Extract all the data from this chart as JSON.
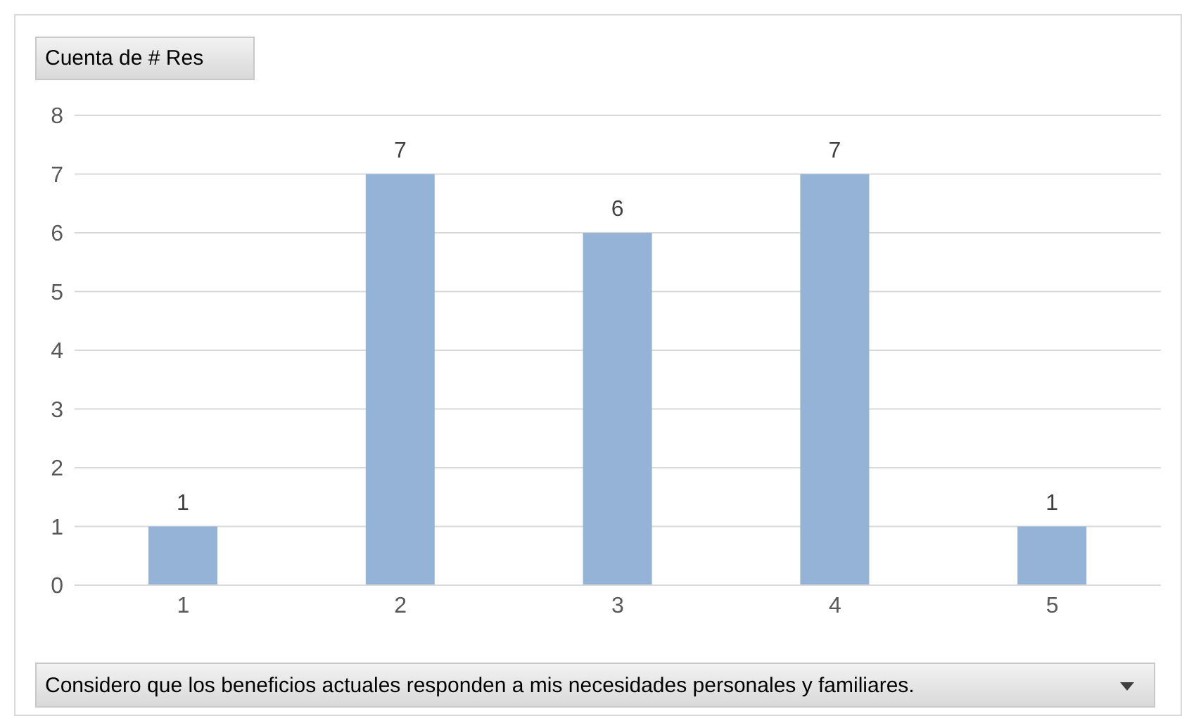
{
  "chart_data": {
    "type": "bar",
    "ylabel": "Cuenta de # Res",
    "xlabel": "Considero que los beneficios actuales responden a mis necesidades personales y familiares.",
    "categories": [
      "1",
      "2",
      "3",
      "4",
      "5"
    ],
    "values": [
      1,
      7,
      6,
      7,
      1
    ],
    "color": "#95b3d7",
    "ylim": [
      0,
      8
    ],
    "yticks": [
      0,
      1,
      2,
      3,
      4,
      5,
      6,
      7,
      8
    ],
    "grid": "y",
    "data_labels": true,
    "legend": false
  }
}
